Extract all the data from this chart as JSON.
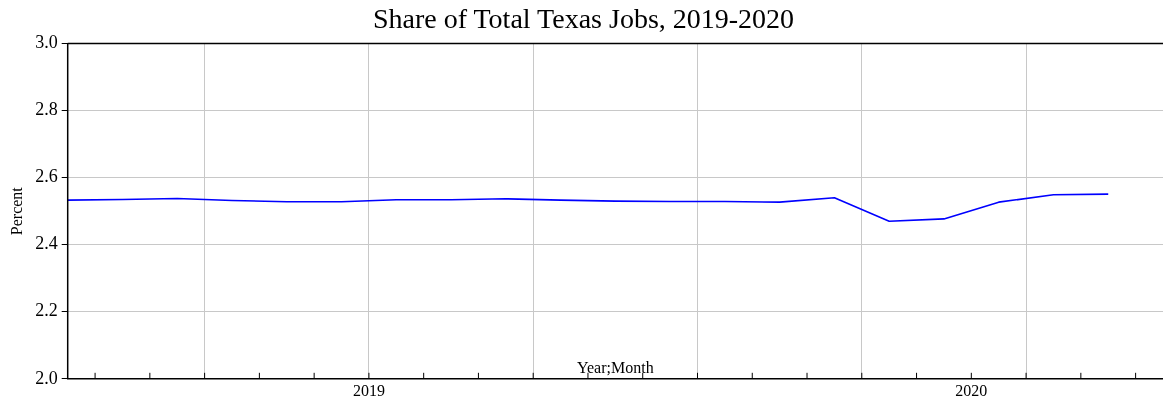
{
  "chart_data": {
    "type": "line",
    "title": "Share of Total Texas Jobs, 2019-2020",
    "xlabel": "Year;Month",
    "ylabel": "Percent",
    "x": [
      "2019-01",
      "2019-02",
      "2019-03",
      "2019-04",
      "2019-05",
      "2019-06",
      "2019-07",
      "2019-08",
      "2019-09",
      "2019-10",
      "2019-11",
      "2019-12",
      "2020-01",
      "2020-02",
      "2020-03",
      "2020-04",
      "2020-05",
      "2020-06",
      "2020-07",
      "2020-08"
    ],
    "series": [
      {
        "color": "#0000ff",
        "values": [
          2.533,
          2.535,
          2.538,
          2.532,
          2.528,
          2.528,
          2.534,
          2.534,
          2.537,
          2.533,
          2.53,
          2.529,
          2.529,
          2.527,
          2.54,
          2.47,
          2.477,
          2.527,
          2.549,
          2.551
        ]
      }
    ],
    "xlim": [
      "2019-01",
      "2020-09"
    ],
    "xticks": [
      {
        "value": "2019-01-16",
        "label": null
      },
      {
        "value": "2019-02-16",
        "label": null
      },
      {
        "value": "2019-03-16",
        "label": null
      },
      {
        "value": "2019-04-16",
        "label": null
      },
      {
        "value": "2019-05-16",
        "label": null
      },
      {
        "value": "2019-06-16",
        "label": "2019"
      },
      {
        "value": "2019-07-16",
        "label": null
      },
      {
        "value": "2019-08-16",
        "label": null
      },
      {
        "value": "2019-09-16",
        "label": null
      },
      {
        "value": "2019-10-16",
        "label": null
      },
      {
        "value": "2019-11-16",
        "label": null
      },
      {
        "value": "2019-12-16",
        "label": null
      },
      {
        "value": "2020-01-16",
        "label": null
      },
      {
        "value": "2020-02-16",
        "label": null
      },
      {
        "value": "2020-03-16",
        "label": null
      },
      {
        "value": "2020-04-16",
        "label": null
      },
      {
        "value": "2020-05-16",
        "label": "2020"
      },
      {
        "value": "2020-06-16",
        "label": null
      },
      {
        "value": "2020-07-16",
        "label": null
      },
      {
        "value": "2020-08-16",
        "label": null
      }
    ],
    "ylim": [
      2.0,
      3.0
    ],
    "yticks": [
      {
        "value": 2.0,
        "label": "2.0"
      },
      {
        "value": 2.2,
        "label": "2.2"
      },
      {
        "value": 2.4,
        "label": "2.4"
      },
      {
        "value": 2.6,
        "label": "2.6"
      },
      {
        "value": 2.8,
        "label": "2.8"
      },
      {
        "value": 3.0,
        "label": "3.0"
      }
    ],
    "grid": true,
    "legend": false,
    "marker": "none",
    "line_style": "solid"
  }
}
